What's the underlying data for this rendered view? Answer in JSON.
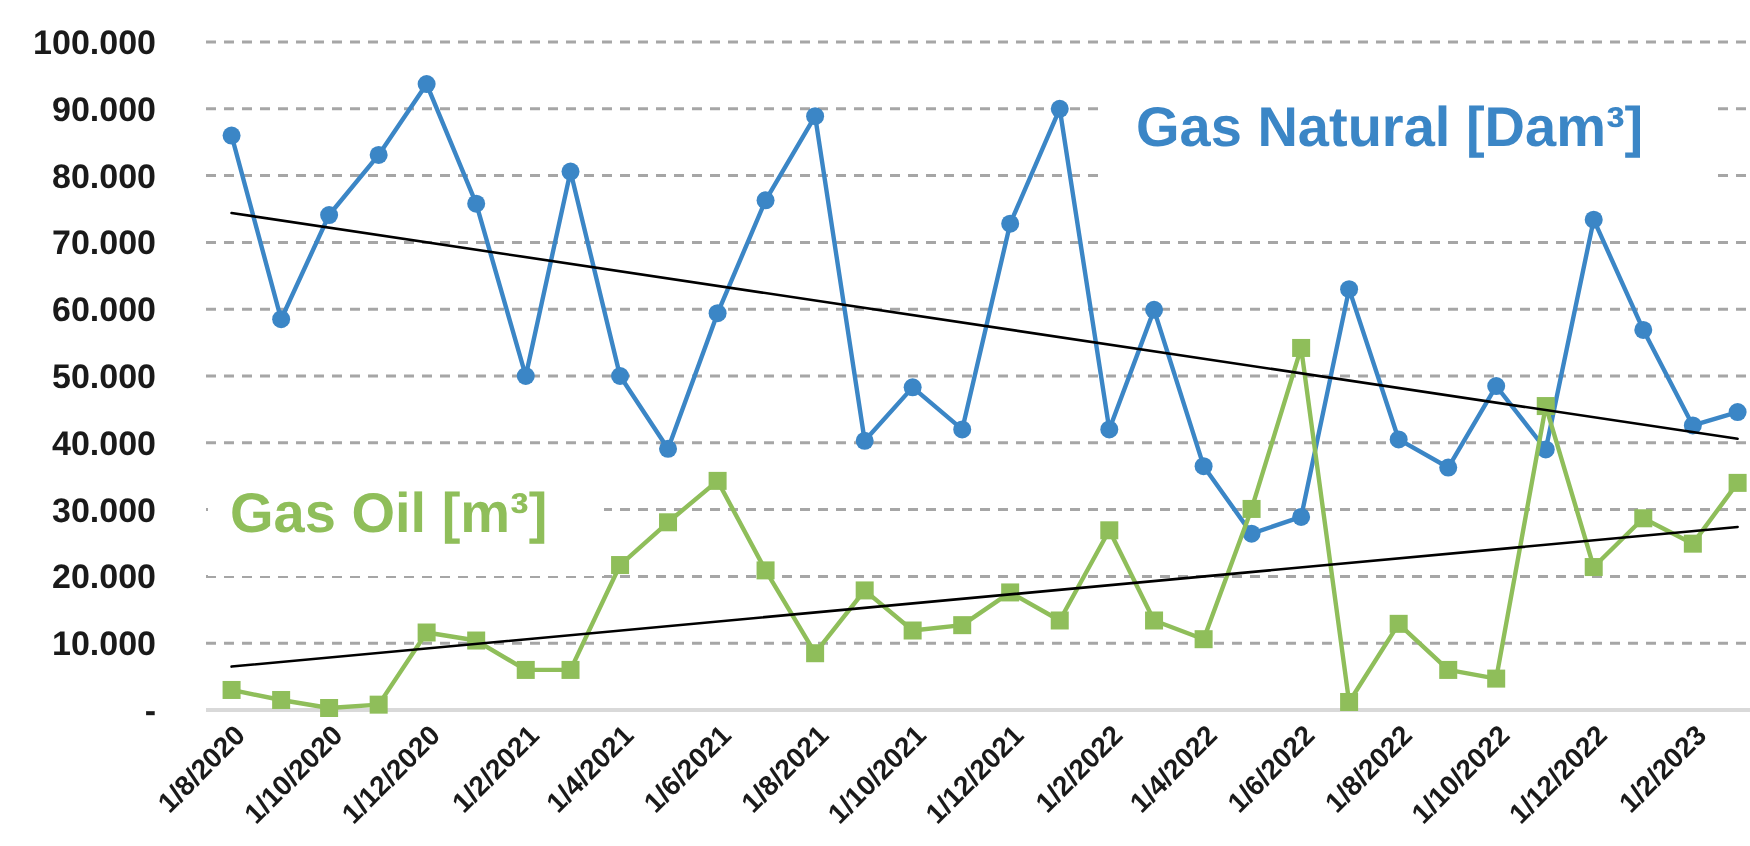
{
  "chart_data": {
    "type": "line",
    "x": [
      "2020-08",
      "2020-09",
      "2020-10",
      "2020-11",
      "2020-12",
      "2021-01",
      "2021-02",
      "2021-03",
      "2021-04",
      "2021-05",
      "2021-06",
      "2021-07",
      "2021-08",
      "2021-09",
      "2021-10",
      "2021-11",
      "2021-12",
      "2022-01",
      "2022-02",
      "2022-03",
      "2022-04",
      "2022-05",
      "2022-06",
      "2022-07",
      "2022-08",
      "2022-09",
      "2022-10",
      "2022-11",
      "2022-12",
      "2023-01",
      "2023-02",
      "2023-03"
    ],
    "xlim": [
      "2020-07-16",
      "2023-03-05"
    ],
    "xticks": [
      {
        "value": "2020-08",
        "label": "1/8/2020"
      },
      {
        "value": "2020-10",
        "label": "1/10/2020"
      },
      {
        "value": "2020-12",
        "label": "1/12/2020"
      },
      {
        "value": "2021-02",
        "label": "1/2/2021"
      },
      {
        "value": "2021-04",
        "label": "1/4/2021"
      },
      {
        "value": "2021-06",
        "label": "1/6/2021"
      },
      {
        "value": "2021-08",
        "label": "1/8/2021"
      },
      {
        "value": "2021-10",
        "label": "1/10/2021"
      },
      {
        "value": "2021-12",
        "label": "1/12/2021"
      },
      {
        "value": "2022-02",
        "label": "1/2/2022"
      },
      {
        "value": "2022-04",
        "label": "1/4/2022"
      },
      {
        "value": "2022-06",
        "label": "1/6/2022"
      },
      {
        "value": "2022-08",
        "label": "1/8/2022"
      },
      {
        "value": "2022-10",
        "label": "1/10/2022"
      },
      {
        "value": "2022-12",
        "label": "1/12/2022"
      },
      {
        "value": "2023-02",
        "label": "1/2/2023"
      }
    ],
    "ylim": [
      0,
      100000
    ],
    "yticks": [
      {
        "value": 0,
        "label": "-"
      },
      {
        "value": 10000,
        "label": "10.000"
      },
      {
        "value": 20000,
        "label": "20.000"
      },
      {
        "value": 30000,
        "label": "30.000"
      },
      {
        "value": 40000,
        "label": "40.000"
      },
      {
        "value": 50000,
        "label": "50.000"
      },
      {
        "value": 60000,
        "label": "60.000"
      },
      {
        "value": 70000,
        "label": "70.000"
      },
      {
        "value": 80000,
        "label": "80.000"
      },
      {
        "value": 90000,
        "label": "90.000"
      },
      {
        "value": 100000,
        "label": "100.000"
      }
    ],
    "grid": "y",
    "series": [
      {
        "name": "Gas Natural [Dam³]",
        "color": "#3b86c6",
        "marker": "circle",
        "values": [
          86000,
          58500,
          74100,
          83100,
          93700,
          75800,
          50000,
          80600,
          50000,
          39100,
          59400,
          76300,
          88900,
          40300,
          48300,
          42000,
          72800,
          90000,
          42000,
          59900,
          36500,
          26400,
          28900,
          63000,
          40500,
          36300,
          48500,
          39000,
          73400,
          56900,
          42600,
          44600
        ]
      },
      {
        "name": "Gas Oil [m³]",
        "color": "#8fbe5a",
        "marker": "square",
        "values": [
          3000,
          1500,
          300,
          800,
          11600,
          10400,
          6000,
          6000,
          21700,
          28100,
          34300,
          20900,
          8500,
          17900,
          11900,
          12700,
          17600,
          13400,
          26900,
          13400,
          10600,
          30100,
          54200,
          1200,
          12900,
          6000,
          4700,
          45500,
          21400,
          28700,
          24900,
          34000
        ]
      },
      {
        "type": "line",
        "x": [
          "2020-08",
          "2023-03"
        ],
        "color": "#000000",
        "marker": "none",
        "values": [
          74400,
          40600
        ]
      },
      {
        "type": "line",
        "x": [
          "2020-08",
          "2023-03"
        ],
        "color": "#000000",
        "marker": "none",
        "values": [
          6500,
          27400
        ]
      }
    ]
  }
}
